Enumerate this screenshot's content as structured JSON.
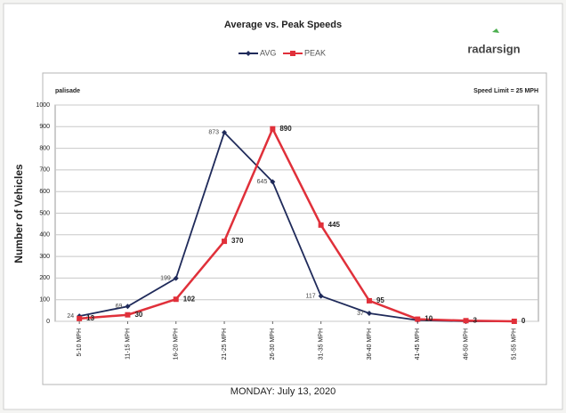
{
  "chart_data": {
    "type": "line",
    "title": "Average vs. Peak Speeds",
    "brand": "radarsign",
    "location": "palisade",
    "note": "Speed Limit = 25 MPH",
    "ylabel": "Number of Vehicles",
    "footer": "MONDAY: July 13, 2020",
    "categories": [
      "5-10 MPH",
      "11-15 MPH",
      "16-20 MPH",
      "21-25 MPH",
      "26-30 MPH",
      "31-35 MPH",
      "36-40 MPH",
      "41-45 MPH",
      "46-50 MPH",
      "51-55 MPH"
    ],
    "series": [
      {
        "name": "AVG",
        "color": "#1f2a5a",
        "marker": "diamond",
        "values": [
          24,
          69,
          199,
          873,
          645,
          117,
          37,
          5,
          0,
          0
        ],
        "value_labels": [
          "24",
          "69",
          "199",
          "873",
          "645",
          "117",
          "37",
          null,
          null,
          null
        ]
      },
      {
        "name": "PEAK",
        "color": "#e0303a",
        "marker": "square",
        "values": [
          13,
          30,
          102,
          370,
          890,
          445,
          95,
          10,
          3,
          0
        ],
        "value_labels": [
          "13",
          "30",
          "102",
          "370",
          "890",
          "445",
          "95",
          "10",
          "3",
          "0"
        ]
      }
    ],
    "ylim": [
      0,
      1000
    ],
    "yticks": [
      0,
      100,
      200,
      300,
      400,
      500,
      600,
      700,
      800,
      900,
      1000
    ],
    "grid": true,
    "legend": "top"
  }
}
